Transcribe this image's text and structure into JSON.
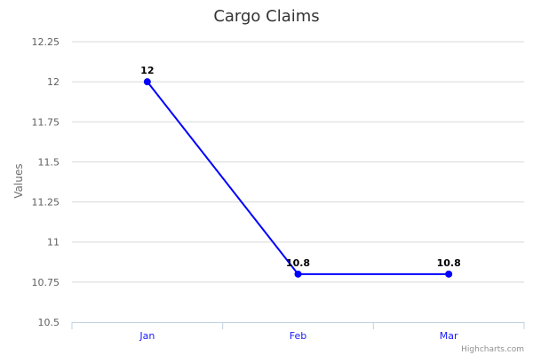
{
  "chart_data": {
    "type": "line",
    "title": "Cargo Claims",
    "xlabel": "",
    "ylabel": "Values",
    "categories": [
      "Jan",
      "Feb",
      "Mar"
    ],
    "series": [
      {
        "values": [
          12,
          10.8,
          10.8
        ],
        "color": "#0000ff"
      }
    ],
    "ylim": [
      10.5,
      12.25
    ],
    "yticks": [
      "10.5",
      "10.75",
      "11",
      "11.25",
      "11.5",
      "11.75",
      "12",
      "12.25"
    ],
    "data_labels": [
      "12",
      "10.8",
      "10.8"
    ],
    "grid": true,
    "legend": "none"
  },
  "credits": "Highcharts.com",
  "colors": {
    "series": "#0000ff",
    "grid": "#d8d8d8",
    "axis": "#c0d0e0",
    "xtick_text": "#1a1aff"
  }
}
